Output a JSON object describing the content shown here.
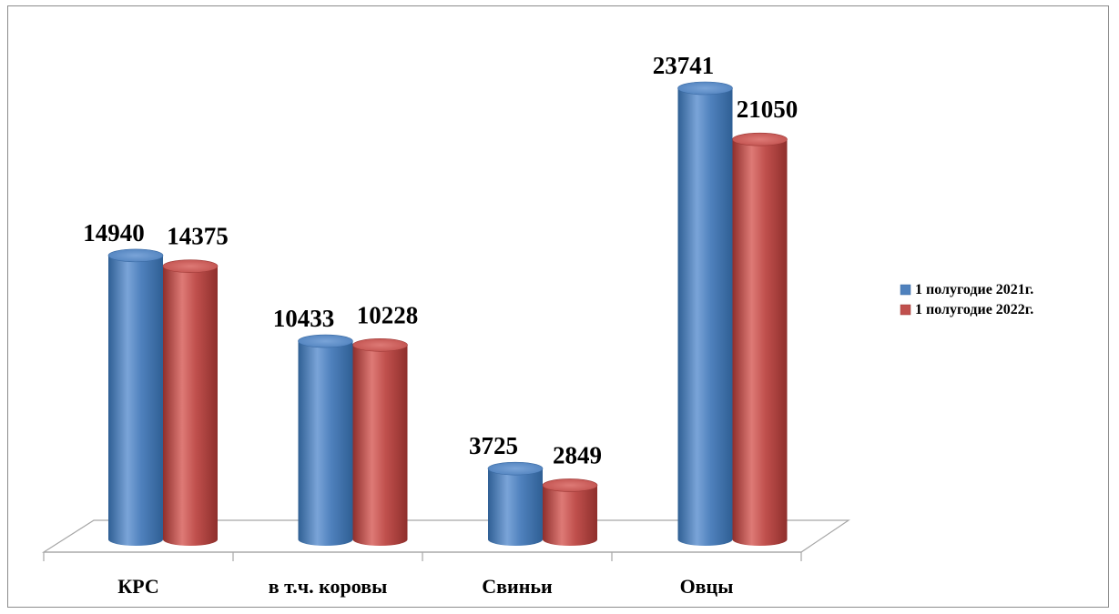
{
  "chart_data": {
    "type": "bar",
    "categories": [
      "КРС",
      "в т.ч. коровы",
      "Свиньи",
      "Овцы"
    ],
    "series": [
      {
        "name": "1 полугодие 2021г.",
        "values": [
          14940,
          10433,
          3725,
          23741
        ],
        "color": "#4f81bd"
      },
      {
        "name": "1 полугодие 2022г.",
        "values": [
          14375,
          10228,
          2849,
          21050
        ],
        "color": "#c0504d"
      }
    ],
    "title": "",
    "xlabel": "",
    "ylabel": "",
    "ylim": [
      0,
      25000
    ],
    "grid": false,
    "legend": "right",
    "style": "3d-cylinder"
  }
}
